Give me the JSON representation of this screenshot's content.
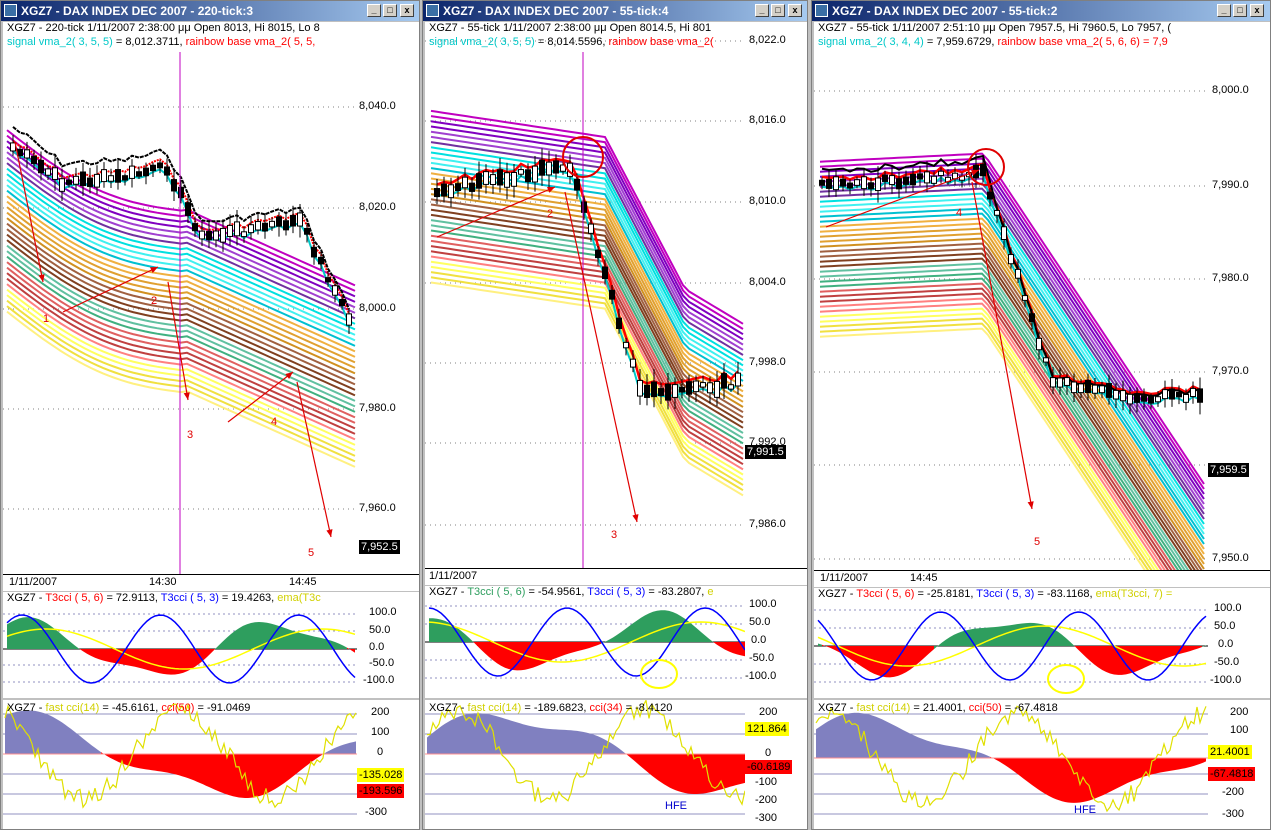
{
  "windows": [
    {
      "title": "XGZ7 - DAX INDEX DEC 2007 - 220-tick:3",
      "header1": "XGZ7 - 220-tick 1/11/2007 2:38:00 μμ Open 8013, Hi 8015, Lo 8",
      "signal_label": "signal vma_2( 3, 5, 5)",
      "signal_value": " = 8,012.3711, ",
      "rainbow_label": "rainbow base vma_2( 5, 5,",
      "price_ticks": [
        "8,040.0",
        "8,020.0",
        "8,000.0",
        "7,980.0",
        "7,960.0"
      ],
      "last_price": "7,952.5",
      "time_labels": [
        "1/11/2007",
        "14:30",
        "14:45"
      ],
      "wave_labels": [
        "1",
        "2",
        "3",
        "4",
        "5"
      ],
      "t3_header": "XGZ7 - ",
      "t3_a": "T3cci ( 5, 6)",
      "t3_a_val": " = 72.9113, ",
      "t3_b": "T3cci ( 5, 3)",
      "t3_b_val": " = 19.4263, ",
      "t3_c": "ema(T3c",
      "t3_ticks": [
        "100.0",
        "50.0",
        "0.0",
        "-50.0",
        "-100.0"
      ],
      "cci_header": "XGZ7 - ",
      "cci_a": "fast cci(14)",
      "cci_a_val": " = -45.6161, ",
      "cci_b": "cci(50)",
      "cci_b_val": " = -91.0469",
      "cci_ticks": [
        "200",
        "100",
        "0",
        "-100",
        "-200",
        "-300"
      ],
      "cci_tag1": "-135.028",
      "cci_tag2": "-193.596",
      "hfe": ""
    },
    {
      "title": "XGZ7 - DAX INDEX DEC 2007 - 55-tick:4",
      "header1": "XGZ7 - 55-tick 1/11/2007 2:38:00 μμ Open 8014.5, Hi 801",
      "signal_label": "signal vma_2( 3, 5, 5)",
      "signal_value": " = 8,014.5596, ",
      "rainbow_label": "rainbow base vma_2(",
      "price_ticks": [
        "8,022.0",
        "8,016.0",
        "8,010.0",
        "8,004.0",
        "7,998.0",
        "7,992.0",
        "7,986.0"
      ],
      "last_price": "7,991.5",
      "time_labels": [
        "1/11/2007"
      ],
      "wave_labels": [
        "2",
        "3"
      ],
      "t3_header": "XGZ7 - ",
      "t3_a": "T3cci ( 5, 6)",
      "t3_a_val": " = -54.9561, ",
      "t3_b": "T3cci ( 5, 3)",
      "t3_b_val": " = -83.2807, ",
      "t3_c": "e",
      "t3_ticks": [
        "100.0",
        "50.0",
        "0.0",
        "-50.0",
        "-100.0"
      ],
      "cci_header": "XGZ7 - ",
      "cci_a": "fast cci(14)",
      "cci_a_val": " = -189.6823, ",
      "cci_b": "cci(34)",
      "cci_b_val": " = -8.4120",
      "cci_ticks": [
        "200",
        "100",
        "0",
        "-100",
        "-200",
        "-300"
      ],
      "cci_tag1": "121.864",
      "cci_tag2": "-60.6189",
      "hfe": "HFE"
    },
    {
      "title": "XGZ7 - DAX INDEX DEC 2007 - 55-tick:2",
      "header1": "XGZ7 - 55-tick 1/11/2007 2:51:10 μμ Open 7957.5, Hi 7960.5, Lo 7957, (",
      "signal_label": "signal vma_2( 3, 4, 4)",
      "signal_value": " = 7,959.6729, ",
      "rainbow_label": "rainbow base vma_2( 5, 6, 6) = 7,9",
      "price_ticks": [
        "8,000.0",
        "7,990.0",
        "7,980.0",
        "7,970.0",
        "7,960.0",
        "7,950.0"
      ],
      "last_price": "7,959.5",
      "time_labels": [
        "1/11/2007",
        "14:45"
      ],
      "wave_labels": [
        "4",
        "5"
      ],
      "t3_header": "XGZ7 - ",
      "t3_a": "T3cci ( 5, 6)",
      "t3_a_val": " = -25.8181, ",
      "t3_b": "T3cci ( 5, 3)",
      "t3_b_val": " = -83.1168, ",
      "t3_c": "ema(T3cci, 7) =",
      "t3_ticks": [
        "100.0",
        "50.0",
        "0.0",
        "-50.0",
        "-100.0"
      ],
      "cci_header": "XGZ7 - ",
      "cci_a": "fast cci(14)",
      "cci_a_val": " = 21.4001, ",
      "cci_b": "cci(50)",
      "cci_b_val": " = -67.4818",
      "cci_ticks": [
        "200",
        "100",
        "0",
        "-100",
        "-200",
        "-300"
      ],
      "cci_tag1": "21.4001",
      "cci_tag2": "-67.4818",
      "hfe": "HFE"
    }
  ],
  "window_buttons": [
    "_",
    "□",
    "x"
  ],
  "colors": {
    "signal": "#00c8c8",
    "rainbow_base": "#ff0000",
    "t3_fast": "#ff0000",
    "t3_slow": "#0000ff",
    "ema": "#ffff00",
    "fast_cci": "#ffff00",
    "slow_cci": "#ff0000",
    "annotation": "#e00000",
    "cursor": "#c000c0"
  }
}
